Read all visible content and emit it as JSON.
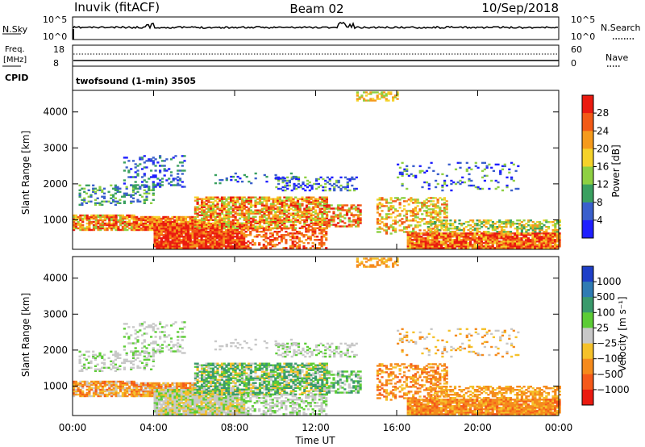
{
  "header": {
    "station": "Inuvik (fitACF)",
    "beam": "Beam 02",
    "date": "10/Sep/2018"
  },
  "strip_panels": {
    "nsky_label": "N.Sky",
    "nsky_ticks": [
      "10^5",
      "10^0"
    ],
    "nsearch_label": "N.Search",
    "nsearch_ticks": [
      "10^5",
      "10^0"
    ],
    "freq_label": "Freq.",
    "freq_unit": "[MHz]",
    "freq_ticks": [
      "18",
      "8"
    ],
    "nave_label": "Nave",
    "nave_ticks": [
      "60",
      "0"
    ],
    "cpid_label": "CPID",
    "cpid_text": "twofsound (1-min) 3505"
  },
  "chart_data": [
    {
      "type": "heatmap",
      "name": "power",
      "ylabel": "Slant Range [km]",
      "xlabel": "",
      "x_ticks": [
        "00:00",
        "04:00",
        "08:00",
        "12:00",
        "16:00",
        "20:00",
        "00:00"
      ],
      "y_ticks": [
        1000,
        2000,
        3000,
        4000
      ],
      "ylim": [
        180,
        4600
      ],
      "xlim": [
        0,
        24
      ],
      "colorbar": {
        "label": "Power [dB]",
        "ticks": [
          "4",
          "8",
          "12",
          "16",
          "20",
          "24",
          "28"
        ],
        "colors": [
          "#1f1fff",
          "#3a5fcc",
          "#3aa060",
          "#8ed042",
          "#f5d22a",
          "#f59a1c",
          "#f25a16",
          "#ea1a10"
        ]
      }
    },
    {
      "type": "heatmap",
      "name": "velocity",
      "ylabel": "Slant Range [km]",
      "xlabel": "Time UT",
      "x_ticks": [
        "00:00",
        "04:00",
        "08:00",
        "12:00",
        "16:00",
        "20:00",
        "00:00"
      ],
      "y_ticks": [
        1000,
        2000,
        3000,
        4000
      ],
      "ylim": [
        180,
        4600
      ],
      "xlim": [
        0,
        24
      ],
      "colorbar": {
        "label": "Velocity [m s⁻¹]",
        "ticks": [
          "1000",
          "500",
          "100",
          "25",
          "−25",
          "−100",
          "−500",
          "−1000"
        ],
        "colors": [
          "#1e3fc8",
          "#2f7bb3",
          "#3a9a6c",
          "#5ccc35",
          "#c8c8c8",
          "#f5c12a",
          "#f58a1c",
          "#f5591a",
          "#ea1a10"
        ]
      }
    }
  ],
  "colors": {
    "ground_scatter": "#c8c8c8"
  }
}
